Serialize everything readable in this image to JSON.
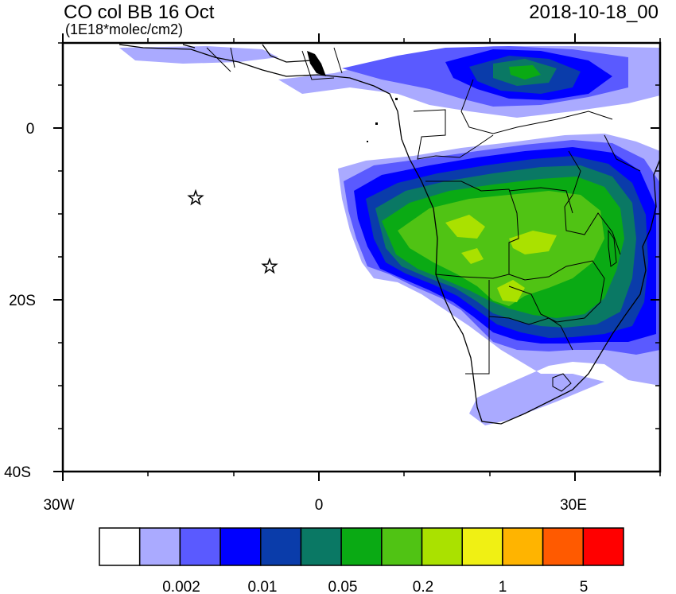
{
  "header": {
    "title": "CO col BB 16 Oct",
    "units": "(1E18*molec/cm2)",
    "datestamp": "2018-10-18_00"
  },
  "axes": {
    "lat_labels": [
      "0",
      "20S",
      "40S"
    ],
    "lon_labels": [
      "30W",
      "0",
      "30E"
    ]
  },
  "legend": {
    "colors": [
      "#ffffff",
      "#aaaaff",
      "#5a5aff",
      "#0000ff",
      "#0a3caa",
      "#0a7864",
      "#0aaa14",
      "#50c314",
      "#aae100",
      "#f0f014",
      "#ffb400",
      "#ff5a00",
      "#ff0000"
    ],
    "labels": [
      "0.002",
      "0.01",
      "0.05",
      "0.2",
      "1",
      "5"
    ]
  },
  "markers": [
    {
      "name": "star-marker-1",
      "lon": -14.5,
      "lat": -8
    },
    {
      "name": "star-marker-2",
      "lon": -5.7,
      "lat": -16
    }
  ]
}
